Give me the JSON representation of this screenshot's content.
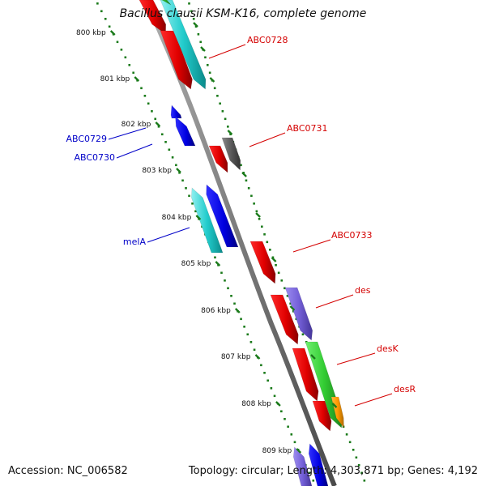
{
  "title": "Bacillus clausii KSM-K16, complete genome",
  "accession": "Accession: NC_006582",
  "topology": "Topology: circular; Length: 4,303,871 bp; Genes: 4,192",
  "colors": {
    "backbone": "#808080",
    "tick_dots": "#1a7a1a",
    "label_red": "#d40000",
    "label_blue": "#0000c8"
  },
  "kbp_labels": [
    "800 kbp",
    "801 kbp",
    "802 kbp",
    "803 kbp",
    "804 kbp",
    "805 kbp",
    "806 kbp",
    "807 kbp",
    "808 kbp",
    "809 kbp"
  ],
  "gene_labels": [
    {
      "text": "ABC0728",
      "side": "right",
      "color": "red"
    },
    {
      "text": "ABC0731",
      "side": "right",
      "color": "red"
    },
    {
      "text": "ABC0733",
      "side": "right",
      "color": "red"
    },
    {
      "text": "des",
      "side": "right",
      "color": "red"
    },
    {
      "text": "desK",
      "side": "right",
      "color": "red"
    },
    {
      "text": "desR",
      "side": "right",
      "color": "red"
    },
    {
      "text": "ABC0729",
      "side": "left",
      "color": "blue"
    },
    {
      "text": "ABC0730",
      "side": "left",
      "color": "blue"
    },
    {
      "text": "melA",
      "side": "left",
      "color": "blue"
    }
  ]
}
